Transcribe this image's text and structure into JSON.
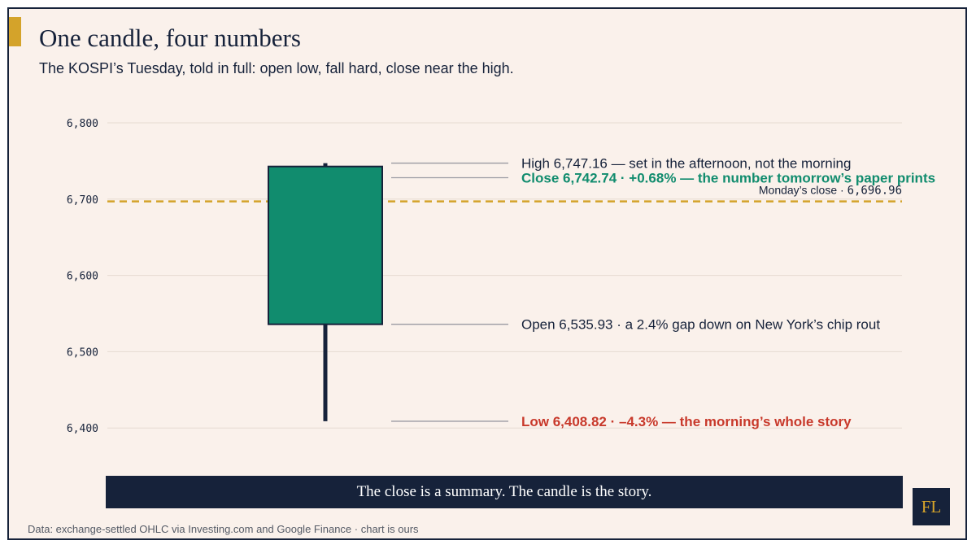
{
  "title": "One candle, four numbers",
  "subtitle": "The KOSPI’s Tuesday, told in full: open low, fall hard, close near the high.",
  "banner": "The close is a summary. The candle is the story.",
  "logo": "FL",
  "source": "Data: exchange-settled OHLC via Investing.com and Google Finance · chart is ours",
  "colors": {
    "up": "#118c6e",
    "wick": "#16223a",
    "reference": "#d4a32a",
    "low_label": "#c8392b",
    "close_label": "#118c6e",
    "text": "#16223a"
  },
  "chart_data": {
    "type": "candlestick",
    "ylim": [
      6380,
      6820
    ],
    "yticks": [
      "6,800",
      "6,700",
      "6,600",
      "6,500",
      "6,400"
    ],
    "ytick_values": [
      6800,
      6700,
      6600,
      6500,
      6400
    ],
    "grid": true,
    "candle": {
      "open": 6535.93,
      "high": 6747.16,
      "low": 6408.82,
      "close": 6742.74
    },
    "reference_line": {
      "value": 6696.96,
      "label_text": "Monday’s close · ",
      "label_value": "6,696.96"
    },
    "annotations": [
      {
        "key": "high",
        "value": 6747.16,
        "text": "High 6,747.16 — set in the afternoon, not the morning",
        "style": "normal"
      },
      {
        "key": "close",
        "value": 6728,
        "text": "Close 6,742.74 · +0.68% — the number tomorrow’s paper prints",
        "style": "close"
      },
      {
        "key": "open",
        "value": 6535.93,
        "text": "Open 6,535.93 · a 2.4% gap down on New York’s chip rout",
        "style": "normal"
      },
      {
        "key": "low",
        "value": 6408.82,
        "text": "Low 6,408.82 · –4.3% — the morning’s whole story",
        "style": "low"
      }
    ]
  }
}
